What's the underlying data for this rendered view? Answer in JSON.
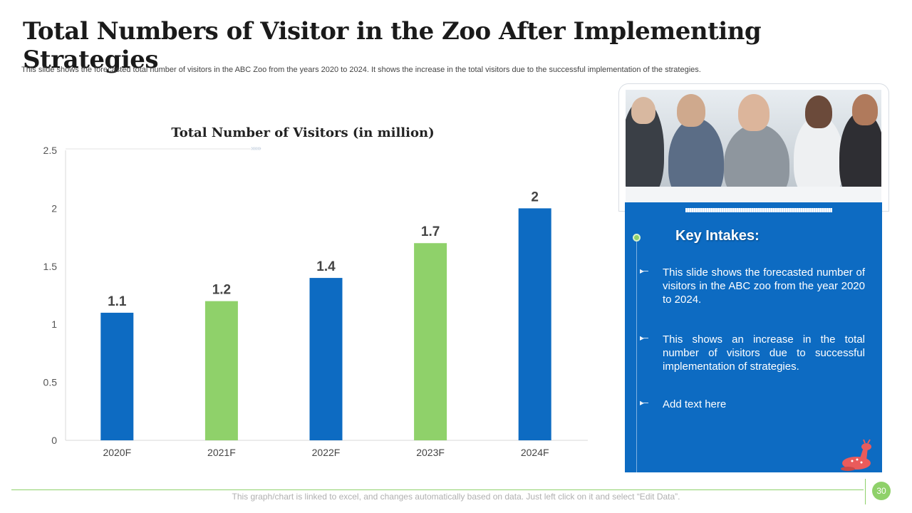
{
  "page": {
    "title": "Total Numbers of Visitor in the Zoo After Implementing Strategies",
    "subtitle": "This slide shows the forecasted total number of visitors in the ABC Zoo from the years 2020 to 2024. It shows the increase in the total visitors due to the successful implementation of the strategies.",
    "footer_note": "This graph/chart is linked to excel, and changes automatically based on data. Just left click on it and select “Edit Data”.",
    "page_number": "30"
  },
  "panel": {
    "heading": "Key Intakes:",
    "bullets": [
      "This slide shows the forecasted number of visitors in the ABC zoo from the year 2020 to 2024.",
      "This shows an increase in the total number of visitors due to successful implementation of strategies.",
      "Add text here"
    ],
    "bullet_icon": "arrow-right-icon",
    "decor_icon": "deer-icon",
    "photo": "business-meeting-photo"
  },
  "colors": {
    "blue": "#0d6bc2",
    "green": "#8fd16a",
    "panel": "#0d6bc2"
  },
  "chart_data": {
    "type": "bar",
    "title": "Total Number of Visitors (in million)",
    "categories": [
      "2020F",
      "2021F",
      "2022F",
      "2023F",
      "2024F"
    ],
    "values": [
      1.1,
      1.2,
      1.4,
      1.7,
      2
    ],
    "data_labels": [
      "1.1",
      "1.2",
      "1.4",
      "1.7",
      "2"
    ],
    "bar_colors": [
      "#0d6bc2",
      "#8fd16a",
      "#0d6bc2",
      "#8fd16a",
      "#0d6bc2"
    ],
    "ylim": [
      0,
      2.5
    ],
    "yticks": [
      0,
      0.5,
      1,
      1.5,
      2,
      2.5
    ],
    "ytick_labels": [
      "0",
      "0.5",
      "1",
      "1.5",
      "2",
      "2.5"
    ],
    "grid": false,
    "legend": "none"
  }
}
